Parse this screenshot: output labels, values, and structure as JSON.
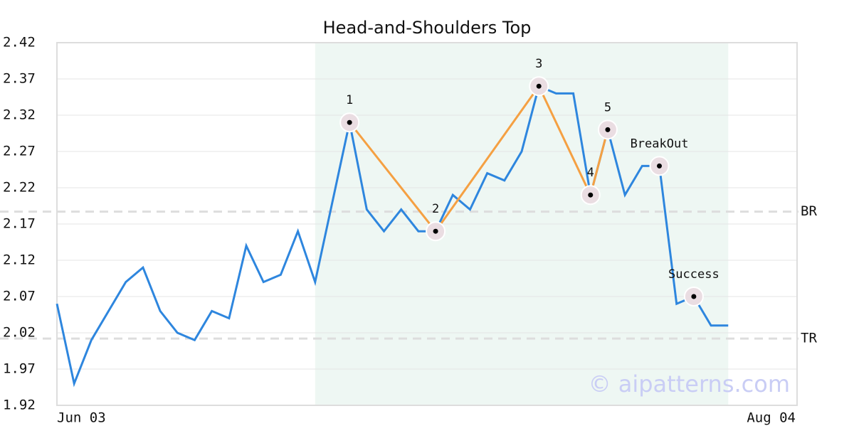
{
  "chart_data": {
    "type": "line",
    "title": "Head-and-Shoulders Top",
    "x": [
      0,
      1,
      2,
      3,
      4,
      5,
      6,
      7,
      8,
      9,
      10,
      11,
      12,
      13,
      14,
      15,
      16,
      17,
      18,
      19,
      20,
      21,
      22,
      23,
      24,
      25,
      26,
      27,
      28,
      29,
      30,
      31,
      32,
      33,
      34,
      35,
      36,
      37,
      38,
      39
    ],
    "values": [
      2.06,
      1.95,
      2.01,
      2.05,
      2.09,
      2.11,
      2.05,
      2.02,
      2.01,
      2.05,
      2.04,
      2.14,
      2.09,
      2.1,
      2.16,
      2.09,
      2.2,
      2.31,
      2.19,
      2.16,
      2.19,
      2.16,
      2.16,
      2.21,
      2.19,
      2.24,
      2.23,
      2.27,
      2.36,
      2.35,
      2.35,
      2.21,
      2.3,
      2.21,
      2.25,
      2.25,
      2.06,
      2.07,
      2.03,
      2.03
    ],
    "color": "#2e86de",
    "xlim": [
      0,
      43
    ],
    "xticks": [
      {
        "value": 0,
        "label": "Jun 03"
      },
      {
        "value": 43,
        "label": "Aug 04"
      }
    ],
    "ylim": [
      1.92,
      2.42
    ],
    "yticks": [
      1.92,
      1.97,
      2.02,
      2.07,
      2.12,
      2.17,
      2.22,
      2.27,
      2.32,
      2.37,
      2.42
    ],
    "grid": true,
    "highlight": [
      15,
      39
    ],
    "highlight_color": "#eef7f3",
    "pattern_color": "#f5a042",
    "pattern": [
      {
        "name": "1",
        "x": 17,
        "value": 2.31
      },
      {
        "name": "2",
        "x": 22,
        "value": 2.16
      },
      {
        "name": "3",
        "x": 28,
        "value": 2.36
      },
      {
        "name": "4",
        "x": 31,
        "value": 2.21
      },
      {
        "name": "5",
        "x": 32,
        "value": 2.3
      },
      {
        "name": "BreakOut",
        "x": 35,
        "value": 2.25
      },
      {
        "name": "Success",
        "x": 37,
        "value": 2.07
      }
    ],
    "pattern_links": 5,
    "levels": [
      {
        "name": "BR",
        "value": 2.187
      },
      {
        "name": "TR",
        "value": 2.012
      }
    ],
    "watermark": "© aipatterns.com"
  }
}
